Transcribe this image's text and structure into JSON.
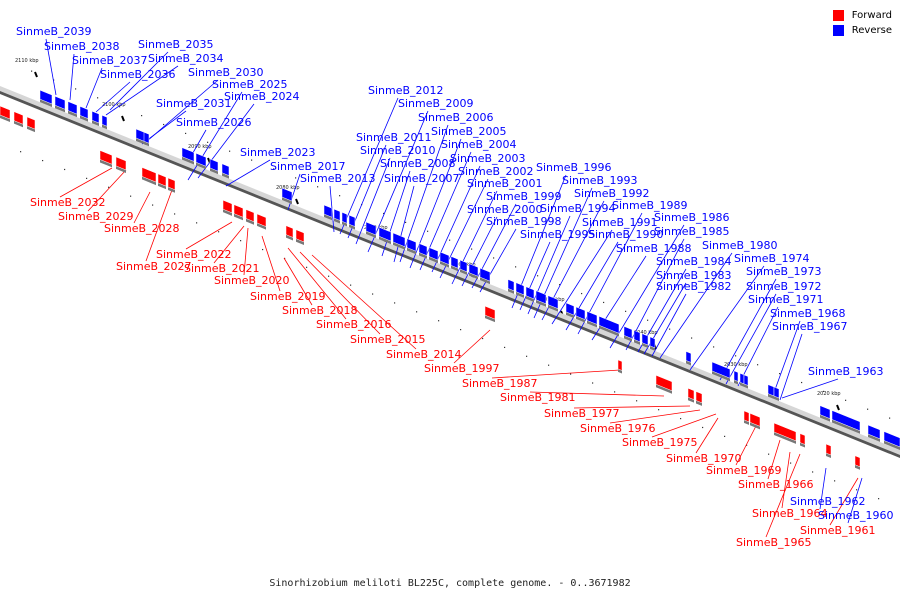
{
  "caption": "Sinorhizobium meliloti BL225C, complete genome. - 0..3671982",
  "legend": [
    {
      "label": "Forward",
      "color": "#ff0000"
    },
    {
      "label": "Reverse",
      "color": "#0000ff"
    }
  ],
  "scale_ticks": [
    "2110 kbp",
    "2100 kbp",
    "2090 kbp",
    "2080 kbp",
    "2070 kbp",
    "2060 kbp",
    "2050 kbp",
    "2040 kbp",
    "2030 kbp",
    "2020 kbp"
  ],
  "genes": [
    {
      "label": "SinmeB_2039",
      "strand": "reverse"
    },
    {
      "label": "SinmeB_2038",
      "strand": "reverse"
    },
    {
      "label": "SinmeB_2037",
      "strand": "reverse"
    },
    {
      "label": "SinmeB_2036",
      "strand": "reverse"
    },
    {
      "label": "SinmeB_2035",
      "strand": "reverse"
    },
    {
      "label": "SinmeB_2034",
      "strand": "reverse"
    },
    {
      "label": "SinmeB_2032",
      "strand": "forward"
    },
    {
      "label": "SinmeB_2031",
      "strand": "reverse"
    },
    {
      "label": "SinmeB_2030",
      "strand": "reverse"
    },
    {
      "label": "SinmeB_2029",
      "strand": "forward"
    },
    {
      "label": "SinmeB_2028",
      "strand": "forward"
    },
    {
      "label": "SinmeB_2027",
      "strand": "forward"
    },
    {
      "label": "SinmeB_2026",
      "strand": "reverse"
    },
    {
      "label": "SinmeB_2025",
      "strand": "reverse"
    },
    {
      "label": "SinmeB_2024",
      "strand": "reverse"
    },
    {
      "label": "SinmeB_2023",
      "strand": "reverse"
    },
    {
      "label": "SinmeB_2022",
      "strand": "forward"
    },
    {
      "label": "SinmeB_2021",
      "strand": "forward"
    },
    {
      "label": "SinmeB_2020",
      "strand": "forward"
    },
    {
      "label": "SinmeB_2019",
      "strand": "forward"
    },
    {
      "label": "SinmeB_2018",
      "strand": "forward"
    },
    {
      "label": "SinmeB_2017",
      "strand": "reverse"
    },
    {
      "label": "SinmeB_2016",
      "strand": "forward"
    },
    {
      "label": "SinmeB_2015",
      "strand": "forward"
    },
    {
      "label": "SinmeB_2014",
      "strand": "forward"
    },
    {
      "label": "SinmeB_2013",
      "strand": "reverse"
    },
    {
      "label": "SinmeB_2012",
      "strand": "reverse"
    },
    {
      "label": "SinmeB_2011",
      "strand": "reverse"
    },
    {
      "label": "SinmeB_2010",
      "strand": "reverse"
    },
    {
      "label": "SinmeB_2009",
      "strand": "reverse"
    },
    {
      "label": "SinmeB_2008",
      "strand": "reverse"
    },
    {
      "label": "SinmeB_2007",
      "strand": "reverse"
    },
    {
      "label": "SinmeB_2006",
      "strand": "reverse"
    },
    {
      "label": "SinmeB_2005",
      "strand": "reverse"
    },
    {
      "label": "SinmeB_2004",
      "strand": "reverse"
    },
    {
      "label": "SinmeB_2003",
      "strand": "reverse"
    },
    {
      "label": "SinmeB_2002",
      "strand": "reverse"
    },
    {
      "label": "SinmeB_2001",
      "strand": "reverse"
    },
    {
      "label": "SinmeB_2000",
      "strand": "reverse"
    },
    {
      "label": "SinmeB_1999",
      "strand": "reverse"
    },
    {
      "label": "SinmeB_1998",
      "strand": "reverse"
    },
    {
      "label": "SinmeB_1997",
      "strand": "forward"
    },
    {
      "label": "SinmeB_1996",
      "strand": "reverse"
    },
    {
      "label": "SinmeB_1995",
      "strand": "reverse"
    },
    {
      "label": "SinmeB_1994",
      "strand": "reverse"
    },
    {
      "label": "SinmeB_1993",
      "strand": "reverse"
    },
    {
      "label": "SinmeB_1992",
      "strand": "reverse"
    },
    {
      "label": "SinmeB_1991",
      "strand": "reverse"
    },
    {
      "label": "SinmeB_1990",
      "strand": "reverse"
    },
    {
      "label": "SinmeB_1989",
      "strand": "reverse"
    },
    {
      "label": "SinmeB_1988",
      "strand": "reverse"
    },
    {
      "label": "SinmeB_1987",
      "strand": "forward"
    },
    {
      "label": "SinmeB_1986",
      "strand": "reverse"
    },
    {
      "label": "SinmeB_1985",
      "strand": "reverse"
    },
    {
      "label": "SinmeB_1984",
      "strand": "reverse"
    },
    {
      "label": "SinmeB_1983",
      "strand": "reverse"
    },
    {
      "label": "SinmeB_1982",
      "strand": "reverse"
    },
    {
      "label": "SinmeB_1981",
      "strand": "forward"
    },
    {
      "label": "SinmeB_1980",
      "strand": "reverse"
    },
    {
      "label": "SinmeB_1977",
      "strand": "forward"
    },
    {
      "label": "SinmeB_1976",
      "strand": "forward"
    },
    {
      "label": "SinmeB_1975",
      "strand": "forward"
    },
    {
      "label": "SinmeB_1974",
      "strand": "reverse"
    },
    {
      "label": "SinmeB_1973",
      "strand": "reverse"
    },
    {
      "label": "SinmeB_1972",
      "strand": "reverse"
    },
    {
      "label": "SinmeB_1971",
      "strand": "reverse"
    },
    {
      "label": "SinmeB_1970",
      "strand": "forward"
    },
    {
      "label": "SinmeB_1969",
      "strand": "forward"
    },
    {
      "label": "SinmeB_1968",
      "strand": "reverse"
    },
    {
      "label": "SinmeB_1967",
      "strand": "reverse"
    },
    {
      "label": "SinmeB_1966",
      "strand": "forward"
    },
    {
      "label": "SinmeB_1965",
      "strand": "forward"
    },
    {
      "label": "SinmeB_1964",
      "strand": "forward"
    },
    {
      "label": "SinmeB_1963",
      "strand": "reverse"
    },
    {
      "label": "SinmeB_1962",
      "strand": "reverse"
    },
    {
      "label": "SinmeB_1961",
      "strand": "forward"
    },
    {
      "label": "SinmeB_1960",
      "strand": "reverse"
    }
  ]
}
